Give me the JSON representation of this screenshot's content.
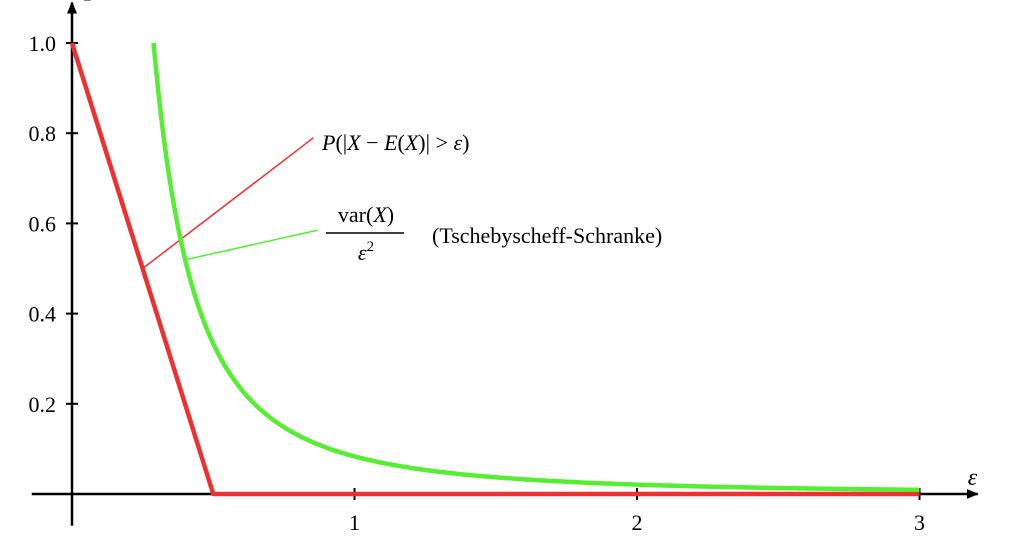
{
  "chart_data": {
    "type": "line",
    "x_axis_label": "ε",
    "y_axis_label": "P",
    "xlim": [
      -0.1,
      3.1
    ],
    "ylim": [
      -0.07,
      1.05
    ],
    "x_ticks": [
      {
        "value": 1,
        "label": "1"
      },
      {
        "value": 2,
        "label": "2"
      },
      {
        "value": 3,
        "label": "3"
      }
    ],
    "y_ticks": [
      {
        "value": 0.2,
        "label": "0.2"
      },
      {
        "value": 0.4,
        "label": "0.4"
      },
      {
        "value": 0.6,
        "label": "0.6"
      },
      {
        "value": 0.8,
        "label": "0.8"
      },
      {
        "value": 1.0,
        "label": "1.0"
      }
    ],
    "grid": false,
    "series": [
      {
        "id": "probability",
        "color": "#f03030",
        "points": [
          [
            0,
            1.0
          ],
          [
            0.5,
            0.0
          ],
          [
            3.0,
            0.0
          ]
        ]
      },
      {
        "id": "chebyshev",
        "color": "#55ee33",
        "formula_numerator": 0.083333,
        "x_start": 0.2887,
        "x_end": 3.0
      }
    ],
    "annotations": [
      {
        "id": "probability-label",
        "color": "#f03030",
        "parts": [
          {
            "text": "P",
            "italic": true
          },
          {
            "text": "(|",
            "italic": false
          },
          {
            "text": "X",
            "italic": true
          },
          {
            "text": " − ",
            "italic": false
          },
          {
            "text": "E",
            "italic": true
          },
          {
            "text": "(",
            "italic": false
          },
          {
            "text": "X",
            "italic": true
          },
          {
            "text": ")| > ",
            "italic": false
          },
          {
            "text": "ε",
            "italic": true
          },
          {
            "text": ")",
            "italic": false
          }
        ],
        "pointer_from": [
          0.855,
          0.79
        ],
        "pointer_to": [
          0.25,
          0.5
        ]
      },
      {
        "id": "chebyshev-label",
        "color": "#55ee33",
        "numerator": [
          {
            "text": "var(",
            "italic": false
          },
          {
            "text": "X",
            "italic": true
          },
          {
            "text": ")",
            "italic": false
          }
        ],
        "denominator_base": "ε",
        "denominator_exp": "2",
        "note": "(Tschebyscheff-Schranke)",
        "pointer_from": [
          0.87,
          0.585
        ],
        "pointer_to": [
          0.405,
          0.52
        ]
      }
    ]
  }
}
